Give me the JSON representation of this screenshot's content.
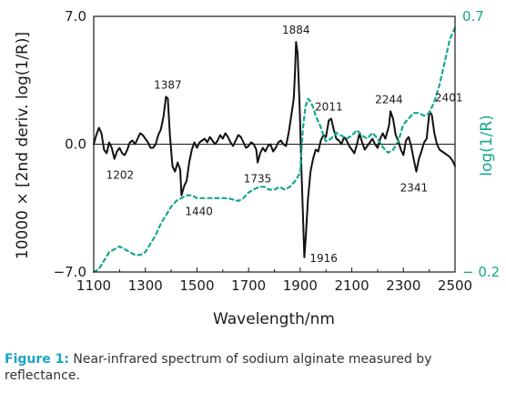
{
  "chart_data": {
    "type": "line",
    "xlabel": "Wavelength/nm",
    "ylabel": "10000 × [2nd deriv. log(1/R)]",
    "y2label": "log(1/R)",
    "xlim": [
      1100,
      2500
    ],
    "ylim": [
      -7.0,
      7.0
    ],
    "y2lim": [
      -0.2,
      0.7
    ],
    "x_ticks": [
      1100,
      1300,
      1500,
      1700,
      1900,
      2100,
      2300,
      2500
    ],
    "x_tick_labels": [
      "1100",
      "1300",
      "1500",
      "1700",
      "1900",
      "2100",
      "2300",
      "2500"
    ],
    "y_ticks": [
      7.0,
      0.0,
      -7.0
    ],
    "y_tick_labels": [
      "7.0",
      "0.0",
      "−7.0"
    ],
    "y2_ticks": [
      0.7,
      -0.2
    ],
    "y2_tick_labels": [
      "0.7",
      "− 0.2"
    ],
    "colors": {
      "second_derivative": "#111111",
      "log_reflectance": "#13a98a"
    },
    "series": [
      {
        "axis": "left",
        "style": "solid",
        "x": [
          1100,
          1110,
          1120,
          1130,
          1140,
          1150,
          1160,
          1170,
          1180,
          1190,
          1200,
          1210,
          1220,
          1230,
          1240,
          1250,
          1260,
          1270,
          1280,
          1290,
          1300,
          1310,
          1320,
          1330,
          1340,
          1350,
          1360,
          1370,
          1380,
          1387,
          1395,
          1405,
          1415,
          1425,
          1435,
          1440,
          1450,
          1460,
          1470,
          1480,
          1490,
          1500,
          1510,
          1520,
          1530,
          1540,
          1550,
          1560,
          1570,
          1580,
          1590,
          1600,
          1610,
          1620,
          1630,
          1640,
          1650,
          1660,
          1670,
          1680,
          1690,
          1700,
          1710,
          1720,
          1730,
          1735,
          1745,
          1755,
          1765,
          1775,
          1785,
          1795,
          1805,
          1815,
          1825,
          1835,
          1845,
          1855,
          1865,
          1875,
          1880,
          1884,
          1890,
          1898,
          1905,
          1912,
          1916,
          1922,
          1930,
          1940,
          1950,
          1960,
          1970,
          1980,
          1990,
          2000,
          2011,
          2020,
          2030,
          2040,
          2050,
          2060,
          2070,
          2080,
          2090,
          2100,
          2110,
          2120,
          2130,
          2140,
          2150,
          2160,
          2170,
          2180,
          2190,
          2200,
          2210,
          2220,
          2230,
          2244,
          2250,
          2260,
          2270,
          2280,
          2290,
          2300,
          2310,
          2320,
          2330,
          2341,
          2350,
          2360,
          2370,
          2380,
          2390,
          2401,
          2410,
          2420,
          2430,
          2440,
          2450,
          2460,
          2470,
          2480,
          2490,
          2500
        ],
        "y": [
          0.0,
          0.5,
          0.9,
          0.6,
          -0.3,
          -0.5,
          0.1,
          -0.2,
          -0.8,
          -0.4,
          -0.2,
          -0.5,
          -0.6,
          -0.3,
          0.1,
          0.2,
          0.0,
          0.3,
          0.6,
          0.5,
          0.3,
          0.1,
          -0.2,
          -0.2,
          0.0,
          0.5,
          0.8,
          1.5,
          2.6,
          2.5,
          0.5,
          -1.2,
          -1.5,
          -1.0,
          -1.4,
          -2.8,
          -2.3,
          -2.0,
          -1.0,
          -0.3,
          0.1,
          -0.2,
          0.1,
          0.2,
          0.3,
          0.1,
          0.4,
          0.2,
          0.0,
          0.2,
          0.5,
          0.3,
          0.6,
          0.4,
          0.1,
          -0.1,
          0.2,
          0.5,
          0.4,
          0.1,
          -0.2,
          -0.1,
          0.1,
          0.0,
          -0.3,
          -1.0,
          -0.5,
          -0.2,
          -0.4,
          -0.1,
          0.0,
          -0.4,
          -0.2,
          0.1,
          0.2,
          0.0,
          -0.1,
          0.6,
          1.5,
          2.5,
          4.0,
          5.6,
          5.0,
          2.0,
          -1.5,
          -4.5,
          -6.2,
          -5.0,
          -3.0,
          -1.5,
          -0.8,
          -0.3,
          -0.4,
          0.2,
          0.5,
          0.4,
          1.3,
          1.4,
          0.8,
          0.3,
          0.2,
          0.0,
          0.4,
          0.2,
          -0.1,
          -0.3,
          -0.5,
          0.0,
          0.6,
          0.1,
          -0.3,
          -0.1,
          0.1,
          0.3,
          0.0,
          -0.2,
          0.3,
          0.6,
          0.3,
          1.0,
          1.8,
          1.4,
          0.5,
          0.2,
          -0.3,
          -0.6,
          0.2,
          0.4,
          -0.1,
          -0.9,
          -1.5,
          -0.8,
          -0.4,
          0.1,
          0.3,
          1.8,
          1.6,
          0.6,
          0.0,
          -0.3,
          -0.4,
          -0.5,
          -0.6,
          -0.7,
          -0.9,
          -1.2
        ]
      },
      {
        "axis": "right",
        "style": "dashed",
        "x": [
          1100,
          1120,
          1140,
          1160,
          1180,
          1200,
          1220,
          1240,
          1260,
          1280,
          1300,
          1320,
          1340,
          1360,
          1380,
          1400,
          1420,
          1440,
          1460,
          1480,
          1500,
          1520,
          1540,
          1560,
          1580,
          1600,
          1620,
          1640,
          1660,
          1680,
          1700,
          1720,
          1740,
          1760,
          1780,
          1800,
          1820,
          1840,
          1860,
          1880,
          1900,
          1910,
          1920,
          1930,
          1940,
          1950,
          1960,
          1970,
          1980,
          1990,
          2000,
          2020,
          2040,
          2060,
          2080,
          2100,
          2120,
          2140,
          2160,
          2180,
          2200,
          2220,
          2240,
          2260,
          2280,
          2300,
          2320,
          2340,
          2360,
          2380,
          2400,
          2420,
          2440,
          2460,
          2480,
          2500
        ],
        "y": [
          -0.2,
          -0.19,
          -0.16,
          -0.13,
          -0.12,
          -0.11,
          -0.12,
          -0.13,
          -0.14,
          -0.14,
          -0.13,
          -0.1,
          -0.07,
          -0.03,
          0.0,
          0.03,
          0.05,
          0.06,
          0.07,
          0.07,
          0.06,
          0.06,
          0.06,
          0.06,
          0.06,
          0.06,
          0.06,
          0.055,
          0.05,
          0.06,
          0.08,
          0.09,
          0.1,
          0.1,
          0.09,
          0.09,
          0.1,
          0.09,
          0.1,
          0.12,
          0.15,
          0.3,
          0.38,
          0.41,
          0.4,
          0.38,
          0.35,
          0.33,
          0.31,
          0.28,
          0.26,
          0.27,
          0.29,
          0.28,
          0.27,
          0.28,
          0.3,
          0.28,
          0.27,
          0.29,
          0.27,
          0.24,
          0.22,
          0.23,
          0.26,
          0.32,
          0.34,
          0.36,
          0.36,
          0.35,
          0.36,
          0.4,
          0.46,
          0.54,
          0.62,
          0.66
        ]
      }
    ],
    "annotations": [
      {
        "text": "1202",
        "x": 1202,
        "y": -0.8,
        "pos": "below"
      },
      {
        "text": "1387",
        "x": 1387,
        "y": 2.6,
        "pos": "above"
      },
      {
        "text": "1440",
        "x": 1440,
        "y": -2.8,
        "pos": "below-right"
      },
      {
        "text": "1735",
        "x": 1735,
        "y": -1.0,
        "pos": "below"
      },
      {
        "text": "1884",
        "x": 1884,
        "y": 5.6,
        "pos": "above"
      },
      {
        "text": "1916",
        "x": 1916,
        "y": -6.2,
        "pos": "right"
      },
      {
        "text": "2011",
        "x": 2011,
        "y": 1.4,
        "pos": "above"
      },
      {
        "text": "2244",
        "x": 2244,
        "y": 1.8,
        "pos": "above"
      },
      {
        "text": "2341",
        "x": 2341,
        "y": -1.5,
        "pos": "below"
      },
      {
        "text": "2401",
        "x": 2401,
        "y": 1.8,
        "pos": "above-right"
      }
    ],
    "grid": false,
    "legend": "none"
  },
  "caption": {
    "label": "Figure 1:",
    "text": " Near-infrared spectrum of sodium alginate measured by reflectance."
  }
}
